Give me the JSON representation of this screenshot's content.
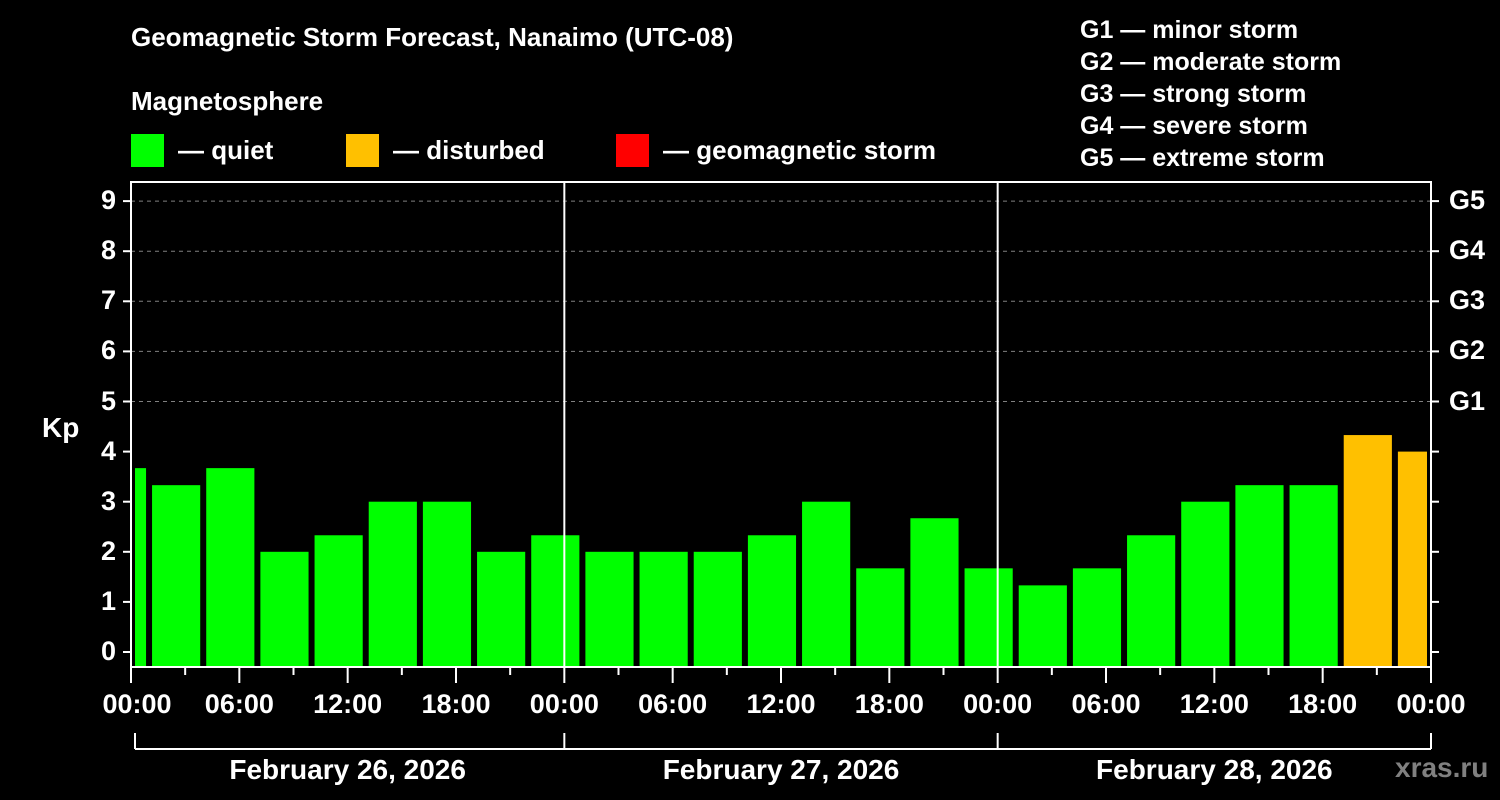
{
  "header": {
    "title": "Geomagnetic Storm Forecast, Nanaimo (UTC-08)",
    "subtitle": "Magnetosphere"
  },
  "legend": [
    {
      "label": "— quiet",
      "color": "#00ff00"
    },
    {
      "label": "— disturbed",
      "color": "#ffc000"
    },
    {
      "label": "— geomagnetic storm",
      "color": "#ff0000"
    }
  ],
  "g_scale": [
    "G1 — minor storm",
    "G2 — moderate storm",
    "G3 — strong storm",
    "G4 — severe storm",
    "G5 — extreme storm"
  ],
  "axes": {
    "ylabel": "Kp",
    "yticks": [
      "0",
      "1",
      "2",
      "3",
      "4",
      "5",
      "6",
      "7",
      "8",
      "9"
    ],
    "right_ticks": [
      "G1",
      "G2",
      "G3",
      "G4",
      "G5"
    ],
    "xticks": [
      "00:00",
      "06:00",
      "12:00",
      "18:00",
      "00:00",
      "06:00",
      "12:00",
      "18:00",
      "00:00",
      "06:00",
      "12:00",
      "18:00",
      "00:00"
    ],
    "dates": [
      "February 26, 2026",
      "February 27, 2026",
      "February 28, 2026"
    ]
  },
  "watermark": "xras.ru",
  "chart_data": {
    "type": "bar",
    "title": "Geomagnetic Storm Forecast, Nanaimo (UTC-08)",
    "subtitle": "Magnetosphere",
    "xlabel": "",
    "ylabel": "Kp",
    "ylim": [
      0,
      9
    ],
    "grid": true,
    "right_axis": {
      "5": "G1",
      "6": "G2",
      "7": "G3",
      "8": "G4",
      "9": "G5"
    },
    "legend": [
      "quiet",
      "disturbed",
      "geomagnetic storm"
    ],
    "colors": {
      "quiet": "#00ff00",
      "disturbed": "#ffc000",
      "storm": "#ff0000"
    },
    "categories": [
      "Feb 26 -02:00–01:00",
      "Feb 26 01:00–04:00",
      "Feb 26 04:00–07:00",
      "Feb 26 07:00–10:00",
      "Feb 26 10:00–13:00",
      "Feb 26 13:00–16:00",
      "Feb 26 16:00–19:00",
      "Feb 26 19:00–22:00",
      "Feb 26 22:00–01:00",
      "Feb 27 01:00–04:00",
      "Feb 27 04:00–07:00",
      "Feb 27 07:00–10:00",
      "Feb 27 10:00–13:00",
      "Feb 27 13:00–16:00",
      "Feb 27 16:00–19:00",
      "Feb 27 19:00–22:00",
      "Feb 27 22:00–01:00",
      "Feb 28 01:00–04:00",
      "Feb 28 04:00–07:00",
      "Feb 28 07:00–10:00",
      "Feb 28 10:00–13:00",
      "Feb 28 13:00–16:00",
      "Feb 28 16:00–19:00",
      "Feb 28 19:00–22:00",
      "Feb 28 22:00–01:00"
    ],
    "values": [
      3.67,
      3.33,
      3.67,
      2.0,
      2.33,
      3.0,
      3.0,
      2.0,
      2.33,
      2.0,
      2.0,
      2.0,
      2.33,
      3.0,
      1.67,
      2.67,
      1.67,
      1.33,
      1.67,
      2.33,
      3.0,
      3.33,
      3.33,
      4.33,
      4.0
    ],
    "status": [
      "quiet",
      "quiet",
      "quiet",
      "quiet",
      "quiet",
      "quiet",
      "quiet",
      "quiet",
      "quiet",
      "quiet",
      "quiet",
      "quiet",
      "quiet",
      "quiet",
      "quiet",
      "quiet",
      "quiet",
      "quiet",
      "quiet",
      "quiet",
      "quiet",
      "quiet",
      "quiet",
      "disturbed",
      "disturbed"
    ]
  }
}
